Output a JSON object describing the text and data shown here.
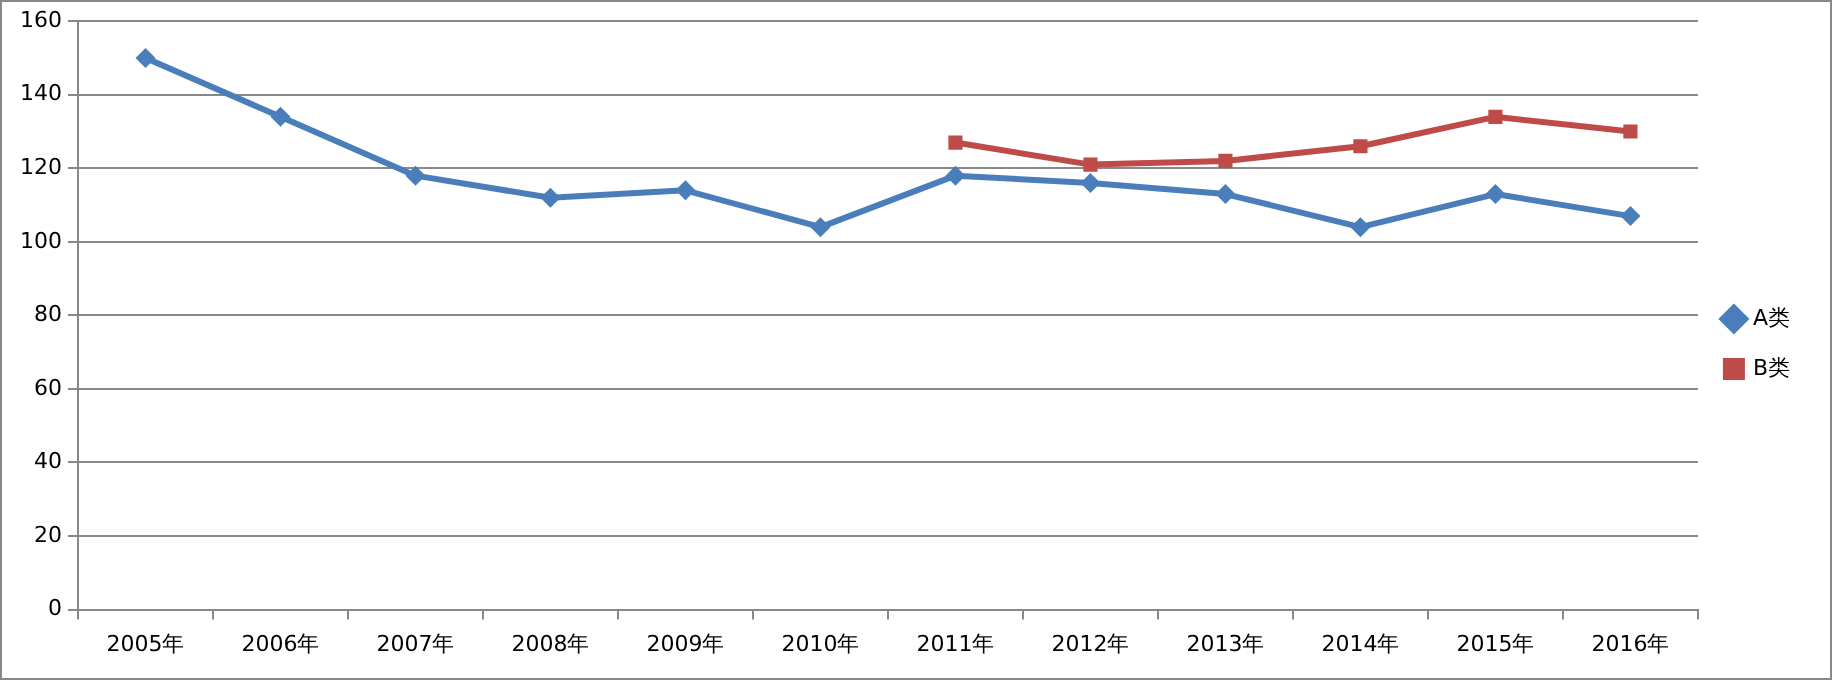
{
  "chart_data": {
    "type": "line",
    "categories": [
      "2005年",
      "2006年",
      "2007年",
      "2008年",
      "2009年",
      "2010年",
      "2011年",
      "2012年",
      "2013年",
      "2014年",
      "2015年",
      "2016年"
    ],
    "series": [
      {
        "name": "A类",
        "color": "#4a7ebb",
        "marker": "diamond",
        "values": [
          150,
          134,
          118,
          112,
          114,
          104,
          118,
          116,
          113,
          104,
          113,
          107
        ]
      },
      {
        "name": "B类",
        "color": "#be4b48",
        "marker": "square",
        "values": [
          null,
          null,
          null,
          null,
          null,
          null,
          127,
          121,
          122,
          126,
          134,
          130
        ]
      }
    ],
    "ylim": [
      0,
      160
    ],
    "yticks": [
      0,
      20,
      40,
      60,
      80,
      100,
      120,
      140,
      160
    ],
    "grid": "y",
    "legend": "right",
    "line_style": "solid"
  }
}
